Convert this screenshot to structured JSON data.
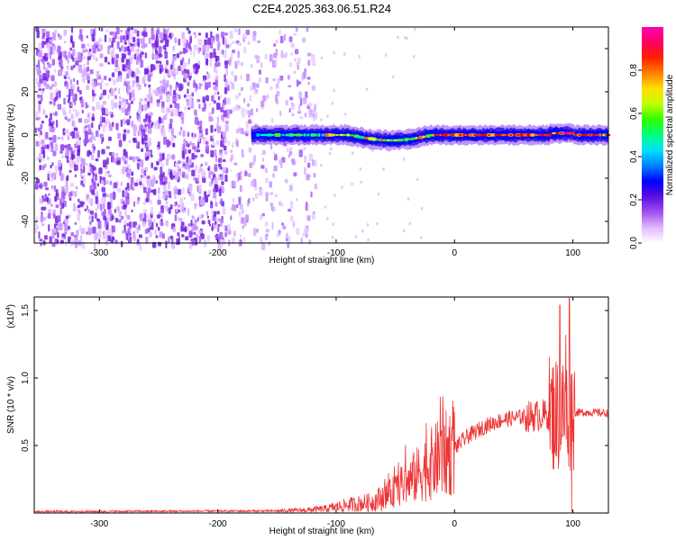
{
  "title": "C2E4.2025.363.06.51.R24",
  "chart_data": [
    {
      "type": "heatmap",
      "name": "spectrogram",
      "xlabel": "Height of straight line (km)",
      "ylabel": "Frequency (Hz)",
      "xlim": [
        -355,
        130
      ],
      "ylim": [
        -50,
        50
      ],
      "xticks": [
        -300,
        -200,
        -100,
        0,
        100
      ],
      "yticks": [
        -40,
        -20,
        0,
        20,
        40
      ],
      "noise_region_x": [
        -355,
        -118
      ],
      "signal_start_x": -172,
      "signal_center_freq_hz": 0,
      "colorbar": {
        "label": "Normalized spectral amplitude",
        "range": [
          0,
          1
        ],
        "ticks": [
          0.0,
          0.2,
          0.4,
          0.6,
          0.8
        ],
        "colors": [
          "#ffffff",
          "#cc88ff",
          "#7a2be0",
          "#3a1ae8",
          "#0000ff",
          "#00c8ff",
          "#00ff90",
          "#40ff00",
          "#d8ff00",
          "#ffd200",
          "#ff6a00",
          "#ff0000",
          "#ff0090"
        ]
      }
    },
    {
      "type": "line",
      "name": "snr",
      "xlabel": "Height of straight line (km)",
      "ylabel": "SNR (10 * v/v)",
      "y_multiplier": "(x10",
      "y_multiplier_exp": "4",
      "y_multiplier_close": ")",
      "xlim": [
        -355,
        130
      ],
      "ylim": [
        0,
        1.6
      ],
      "xticks": [
        -300,
        -200,
        -100,
        0,
        100
      ],
      "yticks": [
        0.5,
        1.0,
        1.5
      ],
      "color": "#ee3333",
      "envelope": [
        {
          "x": -355,
          "y": 0.01
        },
        {
          "x": -150,
          "y": 0.015
        },
        {
          "x": -130,
          "y": 0.02
        },
        {
          "x": -110,
          "y": 0.03
        },
        {
          "x": -90,
          "y": 0.06
        },
        {
          "x": -70,
          "y": 0.08
        },
        {
          "x": -55,
          "y": 0.14
        },
        {
          "x": -40,
          "y": 0.22
        },
        {
          "x": -25,
          "y": 0.33
        },
        {
          "x": -10,
          "y": 0.42
        },
        {
          "x": 0,
          "y": 0.48
        },
        {
          "x": 10,
          "y": 0.56
        },
        {
          "x": 25,
          "y": 0.64
        },
        {
          "x": 40,
          "y": 0.69
        },
        {
          "x": 55,
          "y": 0.71
        },
        {
          "x": 70,
          "y": 0.72
        },
        {
          "x": 80,
          "y": 0.73
        },
        {
          "x": 90,
          "y": 0.74
        },
        {
          "x": 100,
          "y": 0.745
        },
        {
          "x": 115,
          "y": 0.745
        },
        {
          "x": 130,
          "y": 0.74
        }
      ],
      "peaks": [
        {
          "x": -12,
          "y": 0.86
        },
        {
          "x": 89,
          "y": 1.54
        },
        {
          "x": 94,
          "y": 1.32
        },
        {
          "x": 97,
          "y": 1.6
        },
        {
          "x": 99,
          "y": 0.0
        }
      ]
    }
  ]
}
